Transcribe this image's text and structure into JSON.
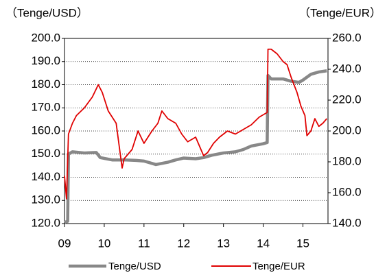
{
  "chart_data": {
    "type": "line",
    "y_label": "（Tenge/USD）",
    "y2_label": "（Tenge/EUR）",
    "xlim": [
      2009,
      2015.63
    ],
    "xticks": [
      {
        "value": 2009,
        "label": "09"
      },
      {
        "value": 2010,
        "label": "10"
      },
      {
        "value": 2011,
        "label": "11"
      },
      {
        "value": 2012,
        "label": "12"
      },
      {
        "value": 2013,
        "label": "13"
      },
      {
        "value": 2014,
        "label": "14"
      },
      {
        "value": 2015,
        "label": "15"
      }
    ],
    "ylim": [
      120,
      200
    ],
    "yticks": [
      {
        "value": 120,
        "label": "120.0"
      },
      {
        "value": 130,
        "label": "130.0"
      },
      {
        "value": 140,
        "label": "140.0"
      },
      {
        "value": 150,
        "label": "150.0"
      },
      {
        "value": 160,
        "label": "160.0"
      },
      {
        "value": 170,
        "label": "170.0"
      },
      {
        "value": 180,
        "label": "180.0"
      },
      {
        "value": 190,
        "label": "190.0"
      },
      {
        "value": 200,
        "label": "200.0"
      }
    ],
    "y2lim": [
      140,
      260
    ],
    "y2ticks": [
      {
        "value": 140,
        "label": "140.0"
      },
      {
        "value": 160,
        "label": "160.0"
      },
      {
        "value": 180,
        "label": "180.0"
      },
      {
        "value": 200,
        "label": "200.0"
      },
      {
        "value": 220,
        "label": "220.0"
      },
      {
        "value": 240,
        "label": "240.0"
      },
      {
        "value": 260,
        "label": "260.0"
      }
    ],
    "grid": true,
    "legend": "bottom",
    "series": [
      {
        "name": "Tenge/USD",
        "color": "#888888",
        "x": [
          2009.0,
          2009.08,
          2009.1,
          2009.2,
          2009.5,
          2009.8,
          2009.9,
          2010.2,
          2010.5,
          2010.8,
          2011.0,
          2011.3,
          2011.6,
          2011.8,
          2012.0,
          2012.3,
          2012.5,
          2012.7,
          2013.0,
          2013.3,
          2013.5,
          2013.7,
          2014.0,
          2014.1,
          2014.12,
          2014.2,
          2014.5,
          2014.7,
          2014.9,
          2015.0,
          2015.2,
          2015.4,
          2015.6
        ],
        "values": [
          120.5,
          121,
          150,
          151,
          150.5,
          150.7,
          148.5,
          147.5,
          147.5,
          147.3,
          147,
          145.5,
          146.5,
          147.5,
          148.3,
          148,
          148.5,
          149.5,
          150.5,
          151,
          152,
          153.5,
          154.5,
          155,
          184,
          182.5,
          182.5,
          181.5,
          181,
          182,
          184.5,
          185.5,
          186
        ]
      },
      {
        "name": "Tenge/EUR",
        "color": "#e00000",
        "axis": "y2",
        "x": [
          2009.0,
          2009.05,
          2009.1,
          2009.2,
          2009.3,
          2009.5,
          2009.7,
          2009.85,
          2009.95,
          2010.1,
          2010.3,
          2010.45,
          2010.5,
          2010.7,
          2010.85,
          2011.0,
          2011.2,
          2011.35,
          2011.45,
          2011.6,
          2011.8,
          2011.95,
          2012.1,
          2012.3,
          2012.5,
          2012.6,
          2012.75,
          2012.9,
          2013.1,
          2013.3,
          2013.5,
          2013.7,
          2013.9,
          2014.1,
          2014.12,
          2014.2,
          2014.35,
          2014.5,
          2014.6,
          2014.7,
          2014.85,
          2014.95,
          2015.05,
          2015.1,
          2015.2,
          2015.3,
          2015.4,
          2015.5,
          2015.6
        ],
        "values": [
          171,
          156,
          198,
          205,
          210,
          215,
          222,
          230,
          225,
          213,
          205,
          176,
          182,
          188,
          200,
          192,
          200,
          205,
          213,
          208,
          205,
          198,
          193,
          196,
          184,
          186,
          192,
          196,
          200,
          198,
          201,
          204,
          209,
          212,
          253,
          253,
          250,
          245,
          243,
          235,
          225,
          216,
          210,
          197,
          200,
          208,
          203,
          205,
          208
        ]
      }
    ]
  }
}
